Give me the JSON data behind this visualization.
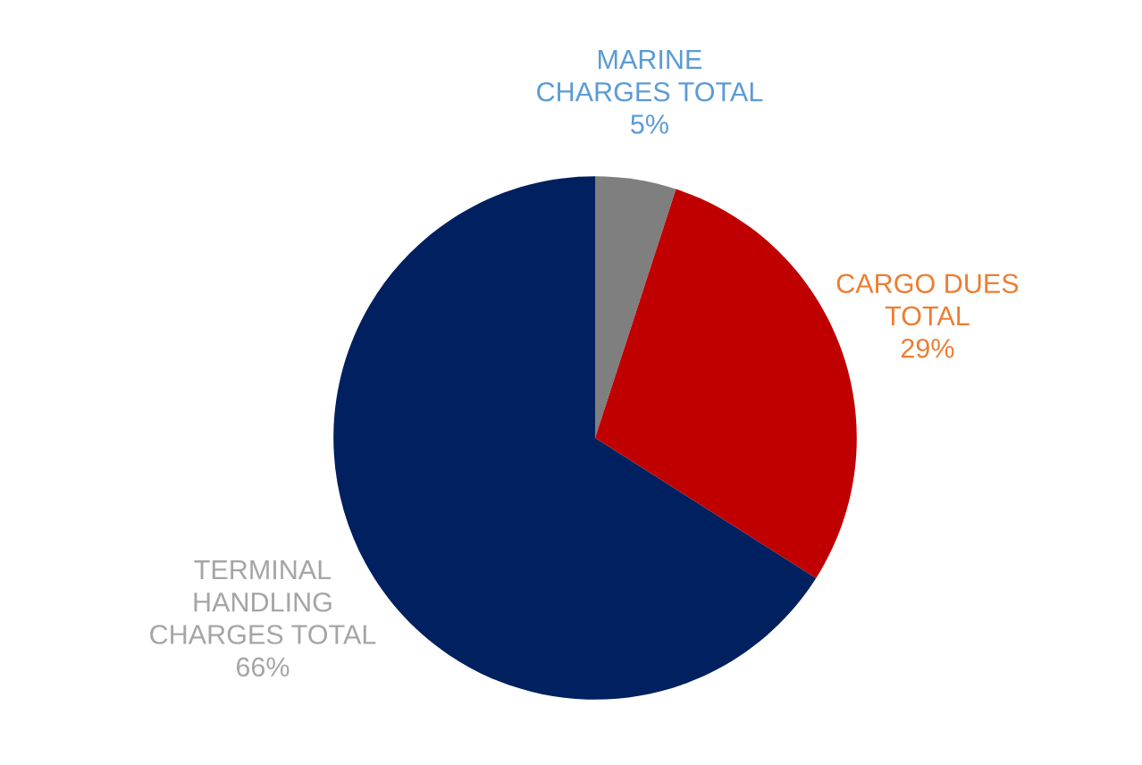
{
  "chart_data": {
    "type": "pie",
    "categories": [
      "MARINE\nCHARGES TOTAL",
      "CARGO DUES\nTOTAL",
      "TERMINAL\nHANDLING\nCHARGES TOTAL"
    ],
    "values": [
      5,
      29,
      66
    ],
    "colors": [
      "#7f7f7f",
      "#c00000",
      "#002060"
    ],
    "value_labels": [
      "5%",
      "29%",
      "66%"
    ]
  }
}
